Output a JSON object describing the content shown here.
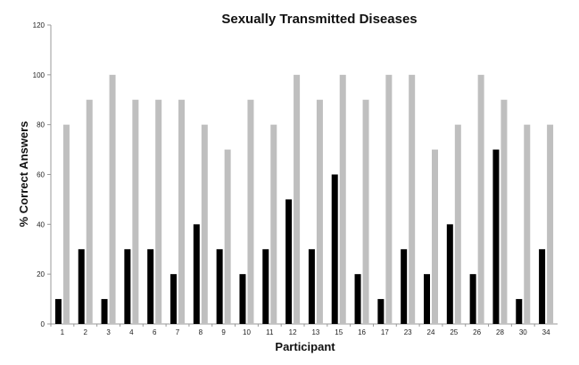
{
  "chart_data": {
    "type": "bar",
    "title": "Sexually Transmitted Diseases",
    "xlabel": "Participant",
    "ylabel": "% Correct Answers",
    "ylim": [
      0,
      120
    ],
    "yticks": [
      0,
      20,
      40,
      60,
      80,
      100,
      120
    ],
    "grid": false,
    "legend": "none",
    "categories": [
      "1",
      "2",
      "3",
      "4",
      "6",
      "7",
      "8",
      "9",
      "10",
      "11",
      "12",
      "13",
      "15",
      "16",
      "17",
      "23",
      "24",
      "25",
      "26",
      "28",
      "30",
      "34"
    ],
    "series": [
      {
        "color": "#000000",
        "values": [
          10,
          30,
          10,
          30,
          30,
          20,
          40,
          30,
          20,
          30,
          50,
          30,
          60,
          20,
          10,
          30,
          20,
          40,
          20,
          70,
          10,
          30
        ]
      },
      {
        "color": "#bfbfbf",
        "values": [
          80,
          90,
          100,
          90,
          90,
          90,
          80,
          70,
          90,
          80,
          100,
          90,
          100,
          90,
          100,
          100,
          70,
          80,
          100,
          90,
          80,
          80
        ]
      }
    ]
  }
}
